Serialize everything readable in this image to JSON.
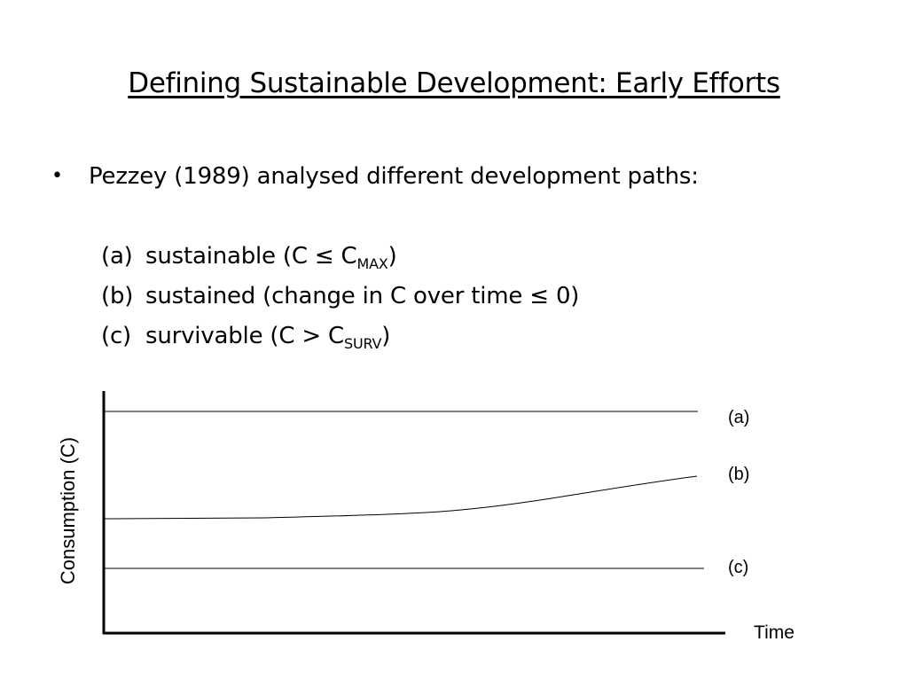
{
  "title": "Defining Sustainable Development: Early Efforts",
  "bullet": {
    "symbol": "•",
    "text": "Pezzey (1989) analysed different development paths:"
  },
  "paths": [
    {
      "marker": "(a)",
      "text": "sustainable (C  ≤ C",
      "sub": "MAX",
      "tail": ")"
    },
    {
      "marker": "(b)",
      "text": "sustained (change in C over time ≤ 0)",
      "sub": "",
      "tail": ""
    },
    {
      "marker": "(c)",
      "text": "survivable (C  >  C",
      "sub": "SURV",
      "tail": ")"
    }
  ],
  "diagram": {
    "y_axis_label": "Consumption (C)",
    "x_axis_label": "Time",
    "curves": [
      {
        "id": "a",
        "label": "(a)",
        "shape": "constant high"
      },
      {
        "id": "b",
        "label": "(b)",
        "shape": "flat then rising"
      },
      {
        "id": "c",
        "label": "(c)",
        "shape": "constant low"
      }
    ]
  }
}
